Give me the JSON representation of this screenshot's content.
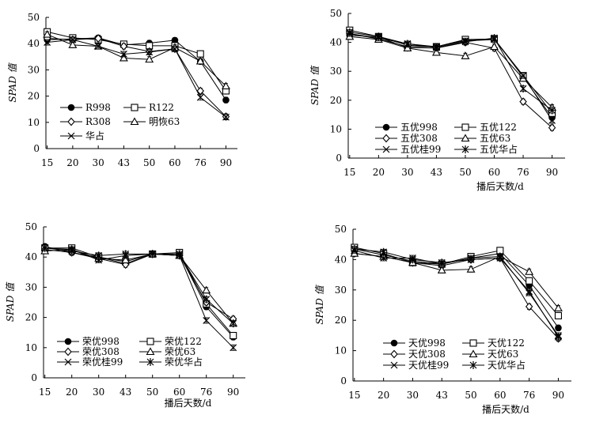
{
  "chart_data": [
    {
      "type": "line",
      "ylabel": "SPAD 值",
      "xlabel": "",
      "x": [
        "15",
        "20",
        "30",
        "43",
        "50",
        "60",
        "76",
        "90"
      ],
      "ylim": [
        0,
        50
      ],
      "yticks": [
        "0",
        "10",
        "20",
        "30",
        "40",
        "50"
      ],
      "legend_position": "bottom-left",
      "series": [
        {
          "name": "R998",
          "marker": "filled-circle",
          "values": [
            41.5,
            41.8,
            42.2,
            39.5,
            40.2,
            41.3,
            33.2,
            18.5
          ]
        },
        {
          "name": "R122",
          "marker": "open-square",
          "values": [
            44.5,
            42.2,
            41.5,
            39.8,
            39.2,
            39.2,
            36.1,
            22.0
          ]
        },
        {
          "name": "R308",
          "marker": "open-diamond",
          "values": [
            42.0,
            41.5,
            42.0,
            39.0,
            37.0,
            38.0,
            22.0,
            12.2
          ]
        },
        {
          "name": "明恢63",
          "marker": "open-triangle",
          "values": [
            43.5,
            39.5,
            39.0,
            34.5,
            34.0,
            38.5,
            33.3,
            23.8
          ]
        },
        {
          "name": "华占",
          "marker": "x",
          "values": [
            40.5,
            41.5,
            39.0,
            36.0,
            36.8,
            38.0,
            19.5,
            12.0
          ]
        }
      ]
    },
    {
      "type": "line",
      "ylabel": "SPAD 值",
      "xlabel": "播后天数/d",
      "x": [
        "15",
        "20",
        "30",
        "43",
        "50",
        "60",
        "76",
        "90"
      ],
      "ylim": [
        0,
        50
      ],
      "yticks": [
        "0",
        "10",
        "20",
        "30",
        "40",
        "50"
      ],
      "legend_position": "bottom-left",
      "series": [
        {
          "name": "五优998",
          "marker": "filled-circle",
          "values": [
            43.0,
            41.2,
            38.5,
            38.5,
            40.8,
            41.2,
            28.0,
            14.0
          ]
        },
        {
          "name": "五优122",
          "marker": "open-square",
          "values": [
            44.2,
            42.0,
            39.0,
            38.5,
            41.0,
            41.2,
            28.5,
            15.5
          ]
        },
        {
          "name": "五优308",
          "marker": "open-diamond",
          "values": [
            42.5,
            41.8,
            38.2,
            38.0,
            40.0,
            38.0,
            19.5,
            10.5
          ]
        },
        {
          "name": "五优63",
          "marker": "open-triangle",
          "values": [
            42.0,
            41.0,
            38.0,
            36.5,
            35.3,
            38.5,
            27.5,
            17.5
          ]
        },
        {
          "name": "五优桂99",
          "marker": "x",
          "values": [
            43.0,
            41.5,
            39.5,
            38.5,
            40.5,
            41.0,
            28.5,
            13.0
          ]
        },
        {
          "name": "五优华占",
          "marker": "star",
          "values": [
            43.5,
            42.0,
            39.5,
            38.2,
            40.2,
            41.5,
            24.0,
            16.5
          ]
        }
      ]
    },
    {
      "type": "line",
      "ylabel": "SPAD 值",
      "xlabel": "播后天数/d",
      "x": [
        "15",
        "20",
        "30",
        "43",
        "50",
        "60",
        "76",
        "90"
      ],
      "ylim": [
        0,
        50
      ],
      "yticks": [
        "0",
        "10",
        "20",
        "30",
        "40",
        "50"
      ],
      "legend_position": "bottom-left",
      "series": [
        {
          "name": "荣优998",
          "marker": "filled-circle",
          "values": [
            43.5,
            41.5,
            40.0,
            37.8,
            41.0,
            41.0,
            23.5,
            13.5
          ]
        },
        {
          "name": "荣优122",
          "marker": "open-square",
          "values": [
            43.0,
            43.0,
            40.0,
            38.5,
            41.0,
            41.5,
            24.5,
            14.0
          ]
        },
        {
          "name": "荣优308",
          "marker": "open-diamond",
          "values": [
            42.5,
            41.5,
            39.5,
            37.5,
            41.0,
            40.5,
            25.0,
            19.5
          ]
        },
        {
          "name": "荣优63",
          "marker": "open-triangle",
          "values": [
            42.0,
            42.5,
            39.5,
            39.0,
            41.0,
            40.5,
            29.0,
            18.0
          ]
        },
        {
          "name": "荣优桂99",
          "marker": "x",
          "values": [
            43.0,
            42.5,
            39.0,
            40.5,
            41.0,
            40.5,
            19.0,
            10.0
          ]
        },
        {
          "name": "荣优华占",
          "marker": "star",
          "values": [
            43.0,
            42.0,
            40.5,
            41.0,
            41.0,
            41.0,
            26.0,
            18.0
          ]
        }
      ]
    },
    {
      "type": "line",
      "ylabel": "SPAD 值",
      "xlabel": "播后天数/d",
      "x": [
        "15",
        "20",
        "30",
        "43",
        "50",
        "60",
        "76",
        "90"
      ],
      "ylim": [
        0,
        50
      ],
      "yticks": [
        "0",
        "10",
        "20",
        "30",
        "40",
        "50"
      ],
      "legend_position": "bottom-left",
      "series": [
        {
          "name": "天优998",
          "marker": "filled-circle",
          "values": [
            43.5,
            41.5,
            39.5,
            38.5,
            40.5,
            42.0,
            31.5,
            17.5
          ]
        },
        {
          "name": "天优122",
          "marker": "open-square",
          "values": [
            44.0,
            42.0,
            39.0,
            38.5,
            41.0,
            43.0,
            33.0,
            21.5
          ]
        },
        {
          "name": "天优308",
          "marker": "open-diamond",
          "values": [
            42.0,
            41.0,
            39.0,
            38.0,
            40.0,
            40.5,
            24.5,
            14.0
          ]
        },
        {
          "name": "天优63",
          "marker": "open-triangle",
          "values": [
            42.0,
            41.0,
            39.0,
            36.5,
            36.8,
            41.0,
            36.0,
            24.0
          ]
        },
        {
          "name": "天优桂99",
          "marker": "x",
          "values": [
            43.0,
            40.5,
            40.5,
            38.5,
            40.5,
            41.0,
            29.0,
            15.0
          ]
        },
        {
          "name": "天优华占",
          "marker": "star",
          "values": [
            43.5,
            42.5,
            40.0,
            39.0,
            40.0,
            40.5,
            29.5,
            14.5
          ]
        }
      ]
    }
  ]
}
